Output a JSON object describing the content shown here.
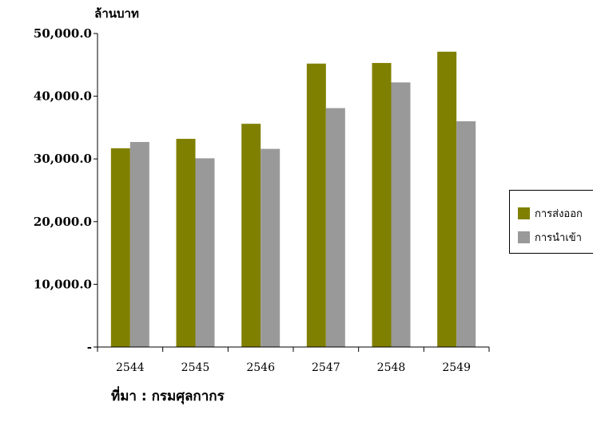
{
  "chart_data": {
    "type": "bar",
    "title": "",
    "ylabel": "ล้านบาท",
    "xlabel": "",
    "categories": [
      "2544",
      "2545",
      "2546",
      "2547",
      "2548",
      "2549"
    ],
    "series": [
      {
        "name": "การส่งออก",
        "color": "#808000",
        "values": [
          31700,
          33200,
          35600,
          45200,
          45300,
          47100
        ]
      },
      {
        "name": "การนำเข้า",
        "color": "#999999",
        "values": [
          32700,
          30100,
          31600,
          38100,
          42200,
          36000
        ]
      }
    ],
    "ylim": [
      0,
      50000
    ],
    "yticks": [
      0,
      10000,
      20000,
      30000,
      40000,
      50000
    ],
    "ytick_labels": [
      "-",
      "10,000.0",
      "20,000.0",
      "30,000.0",
      "40,000.0",
      "50,000.0"
    ],
    "grid": false,
    "legend_position": "right"
  },
  "source_note": "ที่มา : กรมศุลกากร"
}
